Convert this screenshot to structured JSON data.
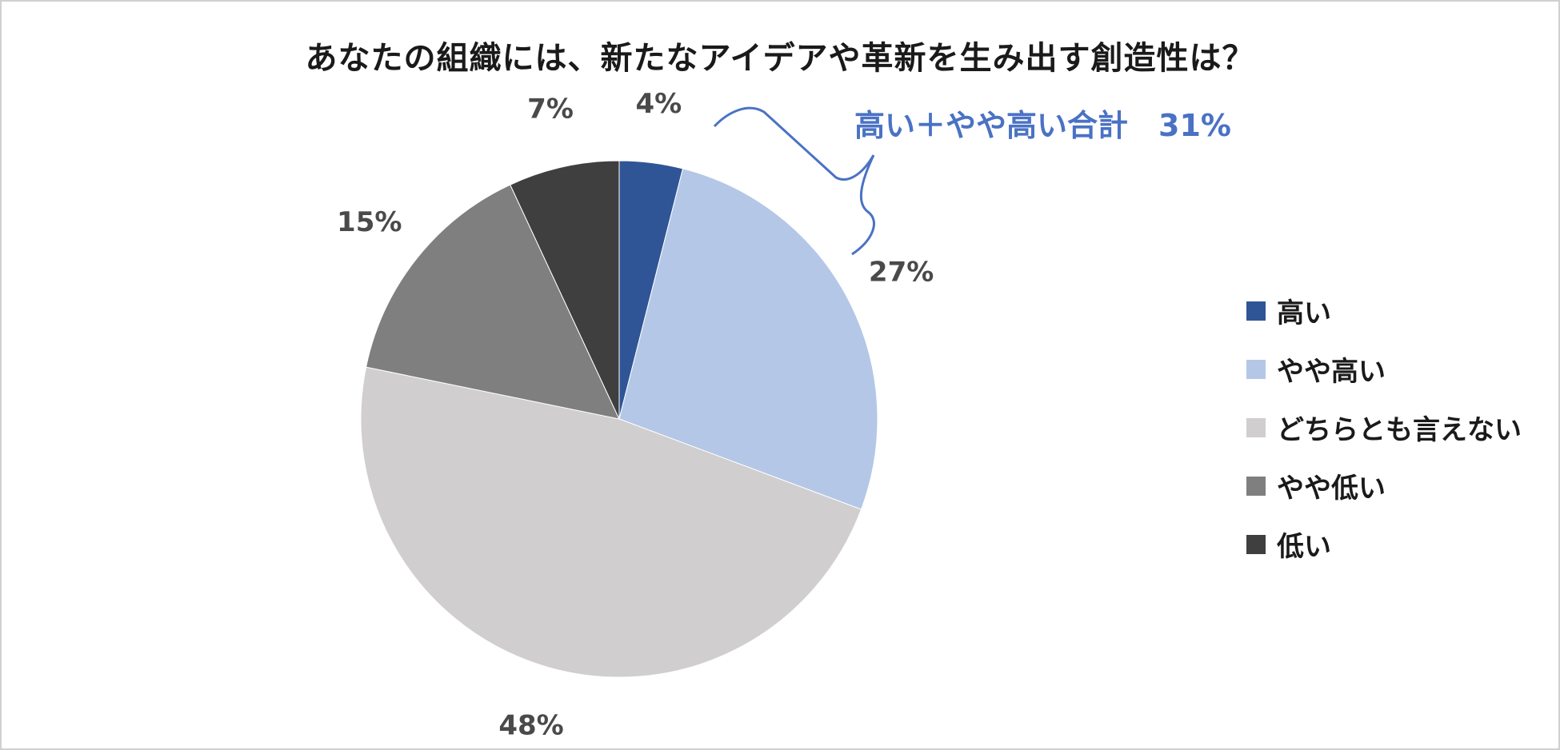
{
  "title": "あなたの組織には、新たなアイデアや革新を生み出す創造性は？",
  "annotation": {
    "text": "高い＋やや高い合計　31%",
    "color": "#4a72c4"
  },
  "chart_data": {
    "type": "pie",
    "title": "あなたの組織には、新たなアイデアや革新を生み出す創造性は？",
    "legend_position": "right",
    "slices": [
      {
        "label": "高い",
        "value": 4,
        "display": "4%",
        "color": "#2f5597"
      },
      {
        "label": "やや高い",
        "value": 27,
        "display": "27%",
        "color": "#b4c7e7"
      },
      {
        "label": "どちらとも言えない",
        "value": 48,
        "display": "48%",
        "color": "#d0cece"
      },
      {
        "label": "やや低い",
        "value": 15,
        "display": "15%",
        "color": "#7f7f7f"
      },
      {
        "label": "低い",
        "value": 7,
        "display": "7%",
        "color": "#3f3f3f"
      }
    ]
  }
}
